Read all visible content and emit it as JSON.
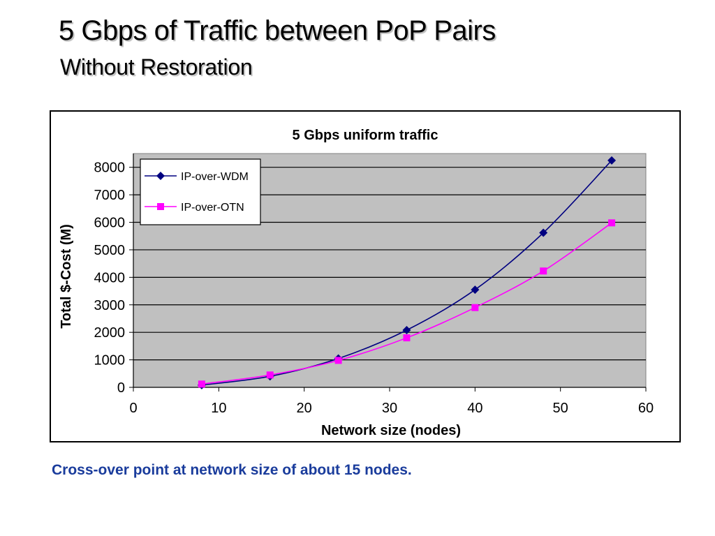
{
  "slide": {
    "title": "5 Gbps of Traffic between PoP Pairs",
    "subtitle": "Without Restoration",
    "caption": "Cross-over point at network size of about 15 nodes."
  },
  "colors": {
    "plot_bg": "#c0c0c0",
    "wdm": "#000080",
    "otn": "#ff00ff",
    "caption": "#1a3c9c"
  },
  "chart_data": {
    "type": "line",
    "title": "5 Gbps uniform traffic",
    "xlabel": "Network size (nodes)",
    "ylabel": "Total $-Cost (M)",
    "xlim": [
      0,
      60
    ],
    "ylim": [
      0,
      8500
    ],
    "xticks": [
      0,
      10,
      20,
      30,
      40,
      50,
      60
    ],
    "yticks": [
      0,
      1000,
      2000,
      3000,
      4000,
      5000,
      6000,
      7000,
      8000
    ],
    "grid": "horizontal",
    "legend_position": "top-left",
    "series": [
      {
        "name": "IP-over-WDM",
        "marker": "diamond",
        "x": [
          8,
          16,
          24,
          32,
          40,
          48,
          56
        ],
        "y": [
          80,
          400,
          1050,
          2080,
          3550,
          5620,
          8250
        ]
      },
      {
        "name": "IP-over-OTN",
        "marker": "square",
        "x": [
          8,
          16,
          24,
          32,
          40,
          48,
          56
        ],
        "y": [
          120,
          450,
          980,
          1800,
          2900,
          4230,
          5980
        ]
      }
    ]
  }
}
